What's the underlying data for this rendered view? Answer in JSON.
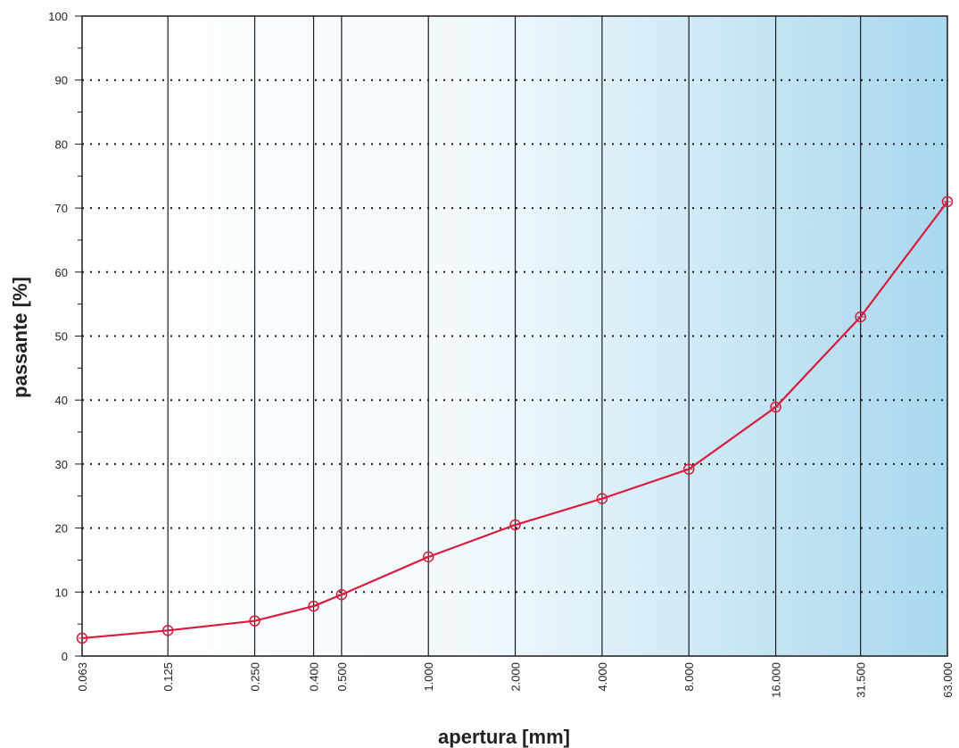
{
  "chart_data": {
    "type": "line",
    "title": "",
    "xlabel": "apertura [mm]",
    "ylabel": "passante [%]",
    "x_scale": "log",
    "categories": [
      "0.063",
      "0.125",
      "0.250",
      "0.400",
      "0.500",
      "1.000",
      "2.000",
      "4.000",
      "8.000",
      "16.000",
      "31.500",
      "63.000"
    ],
    "x": [
      0.063,
      0.125,
      0.25,
      0.4,
      0.5,
      1.0,
      2.0,
      4.0,
      8.0,
      16.0,
      31.5,
      63.0
    ],
    "series": [
      {
        "values": [
          2.8,
          4.0,
          5.5,
          7.8,
          9.6,
          15.5,
          20.5,
          24.6,
          29.2,
          38.9,
          53.0,
          71.0
        ]
      }
    ],
    "ylim": [
      0,
      100
    ],
    "yticks": [
      "0",
      "10",
      "20",
      "30",
      "40",
      "50",
      "60",
      "70",
      "80",
      "90",
      "100"
    ],
    "grid": true,
    "colors": {
      "line": "#d81b3c",
      "marker": "#d81b3c",
      "grid": "#1a1a1a",
      "frame": "#1a1a1a",
      "background_left": "#ffffff",
      "background_right": "#a9d8ee"
    }
  }
}
